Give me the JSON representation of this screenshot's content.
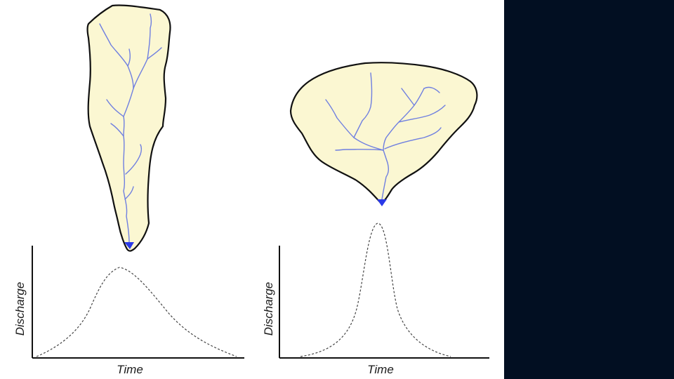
{
  "colors": {
    "basin_fill": "#fbf7d2",
    "basin_outline": "#111111",
    "river": "#6f7fe0",
    "outlet": "#2a39e8",
    "hydrograph": "#444444",
    "axis": "#111111",
    "side_panel": "#020f22"
  },
  "panels": [
    {
      "basin_shape": "elongated",
      "xlabel": "Time",
      "ylabel": "Discharge",
      "hydrograph_peak": "low and broad"
    },
    {
      "basin_shape": "circular",
      "xlabel": "Time",
      "ylabel": "Discharge",
      "hydrograph_peak": "high and narrow"
    }
  ]
}
